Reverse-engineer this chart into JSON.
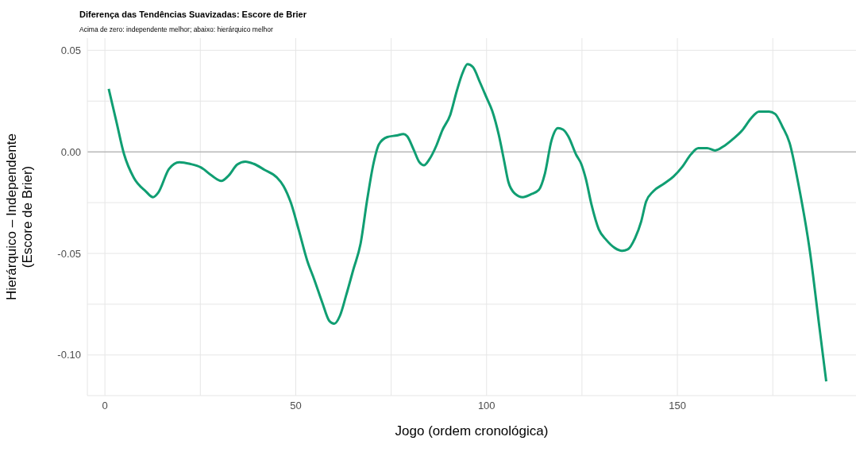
{
  "chart_data": {
    "type": "line",
    "title": "Diferença das Tendências Suavizadas: Escore de Brier",
    "subtitle": "Acima de zero: independente melhor; abaixo: hierárquico melhor",
    "xlabel": "Jogo (ordem cronológica)",
    "ylabel": "Hierárquico – Independente\n(Escore de Brier)",
    "x": [
      1,
      3,
      5,
      7.6,
      10.7,
      12.6,
      14,
      16.8,
      19.5,
      22.3,
      25.2,
      28,
      30.5,
      32.4,
      34.7,
      36.8,
      39,
      41.8,
      45,
      46.8,
      48.7,
      50.8,
      53,
      54.8,
      57,
      58.8,
      60.1,
      61.6,
      63.2,
      65.1,
      67,
      68.7,
      70.4,
      71.8,
      74,
      76.5,
      78.2,
      79.2,
      80.9,
      82.4,
      83.6,
      85,
      86.9,
      88.4,
      90.5,
      92.2,
      93.7,
      95,
      96.4,
      98.3,
      100,
      101.5,
      103.2,
      104.6,
      105.7,
      107.4,
      109.5,
      111.6,
      113.7,
      115.3,
      117,
      118.7,
      120,
      121.4,
      123.5,
      124.8,
      126,
      127.5,
      129.4,
      131.3,
      133.6,
      135.5,
      137,
      138.9,
      140.5,
      141.8,
      143.7,
      146.4,
      149,
      151.3,
      153.6,
      155.5,
      157.8,
      159.9,
      162,
      164.3,
      167,
      169.3,
      171.4,
      174,
      175.6,
      177.5,
      179.4,
      181.7,
      184.7,
      187.2,
      189
    ],
    "series": [
      {
        "color": "#109e72",
        "values": [
          0.031,
          0.015,
          -0.001,
          -0.0128,
          -0.0194,
          -0.0223,
          -0.02,
          -0.0084,
          -0.0051,
          -0.0059,
          -0.0077,
          -0.0117,
          -0.0143,
          -0.0117,
          -0.0062,
          -0.0048,
          -0.0059,
          -0.0088,
          -0.0125,
          -0.0168,
          -0.0249,
          -0.0385,
          -0.0535,
          -0.0626,
          -0.0744,
          -0.0832,
          -0.0846,
          -0.0806,
          -0.0707,
          -0.0579,
          -0.0451,
          -0.0238,
          -0.0055,
          0.0037,
          0.0073,
          0.0081,
          0.0088,
          0.0077,
          0.0011,
          -0.0051,
          -0.0066,
          -0.0037,
          0.0033,
          0.0106,
          0.0183,
          0.03,
          0.0388,
          0.0432,
          0.0418,
          0.0341,
          0.0267,
          0.0201,
          0.0084,
          -0.0044,
          -0.0147,
          -0.0205,
          -0.0223,
          -0.0209,
          -0.0187,
          -0.0106,
          0.0055,
          0.0117,
          0.011,
          0.0077,
          -0.0015,
          -0.0059,
          -0.0132,
          -0.026,
          -0.0381,
          -0.0432,
          -0.0473,
          -0.0487,
          -0.048,
          -0.0425,
          -0.0344,
          -0.0245,
          -0.0194,
          -0.0158,
          -0.0121,
          -0.0073,
          -0.0011,
          0.0018,
          0.0018,
          0.0007,
          0.0026,
          0.0059,
          0.0106,
          0.0165,
          0.0198,
          0.0198,
          0.0187,
          0.0125,
          0.0044,
          -0.0158,
          -0.0487,
          -0.0861,
          -0.113
        ]
      }
    ],
    "xlim": [
      -4.6,
      196.8
    ],
    "ylim": [
      -0.12,
      0.056
    ],
    "xticks": [
      0,
      {
        "value": 25,
        "label": null
      },
      50,
      {
        "value": 75,
        "label": null
      },
      100,
      {
        "value": 125,
        "label": null
      },
      150,
      {
        "value": 175,
        "label": null
      }
    ],
    "yticks": [
      {
        "value": -0.1,
        "label": "-0.10"
      },
      {
        "value": -0.075,
        "label": null
      },
      -0.05,
      {
        "value": -0.025,
        "label": null
      },
      {
        "value": 0,
        "label": "0.00"
      },
      {
        "value": 0.025,
        "label": null
      },
      0.05
    ],
    "ref_lines": [
      {
        "axis": "y",
        "value": 0,
        "color": "#a0a0a0"
      }
    ],
    "grid": true,
    "marker": "none",
    "line_style": "solid"
  }
}
